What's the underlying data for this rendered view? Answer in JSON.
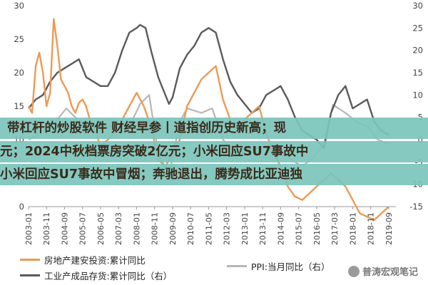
{
  "headline": {
    "line1": "带杠杆的炒股软件 财经早参丨道指创历史新高；现",
    "line2": "元；2024中秋档票房突破2亿元；小米回应SU7事故中",
    "line3": "小米回应SU7事故中冒烟；奔驰退出，腾势成比亚迪独"
  },
  "watermark": "普涛宏观笔记",
  "colors": {
    "real_estate": "#ec9a55",
    "inventory": "#5a5a5a",
    "ppi": "#b7b7b7",
    "banner": "#7bc4bc"
  },
  "chart_data": {
    "type": "line",
    "x_ticks": [
      "2003-01",
      "2003-11",
      "2004-09",
      "2005-07",
      "2006-05",
      "2007-03",
      "2008-01",
      "2008-11",
      "2009-09",
      "2010-07",
      "2011-05",
      "2012-03",
      "2013-01",
      "2013-11",
      "2014-09",
      "2015-07",
      "2016-05",
      "2017-03",
      "2018-01",
      "2018-11",
      "2019-09"
    ],
    "y_left": {
      "ticks": [
        "0",
        "5",
        "10",
        "15",
        "20",
        "25",
        "30"
      ],
      "range": [
        0,
        30
      ]
    },
    "y_right": {
      "ticks": [
        "-15",
        "-10",
        "-5",
        "0",
        "5",
        "10",
        "15",
        "20",
        "25",
        "30"
      ],
      "range": [
        -15,
        30
      ]
    },
    "series": [
      {
        "name": "房地产建安投资:累计同比",
        "axis": "left",
        "color": "#ec9a55",
        "points": [
          [
            "2003-01",
            15
          ],
          [
            "2003-03",
            14
          ],
          [
            "2003-05",
            21
          ],
          [
            "2003-07",
            23
          ],
          [
            "2003-09",
            20
          ],
          [
            "2003-11",
            15
          ],
          [
            "2004-01",
            17
          ],
          [
            "2004-03",
            28
          ],
          [
            "2004-05",
            24
          ],
          [
            "2004-07",
            19
          ],
          [
            "2004-09",
            18
          ],
          [
            "2004-11",
            17
          ],
          [
            "2005-01",
            15
          ],
          [
            "2005-03",
            14
          ],
          [
            "2005-05",
            15.5
          ],
          [
            "2005-07",
            16
          ],
          [
            "2005-09",
            15
          ],
          [
            "2005-11",
            13
          ],
          [
            "2006-01",
            12
          ],
          [
            "2006-05",
            9
          ],
          [
            "2006-09",
            10
          ],
          [
            "2007-01",
            11
          ],
          [
            "2007-05",
            13
          ],
          [
            "2007-09",
            15
          ],
          [
            "2008-01",
            17
          ],
          [
            "2008-05",
            15
          ],
          [
            "2008-09",
            12
          ],
          [
            "2009-01",
            7
          ],
          [
            "2009-05",
            6
          ],
          [
            "2009-09",
            8
          ],
          [
            "2010-01",
            10
          ],
          [
            "2010-05",
            15
          ],
          [
            "2010-09",
            17
          ],
          [
            "2011-01",
            19
          ],
          [
            "2011-05",
            20
          ],
          [
            "2011-09",
            21
          ],
          [
            "2012-01",
            16
          ],
          [
            "2012-05",
            13
          ],
          [
            "2012-09",
            11
          ],
          [
            "2013-01",
            13
          ],
          [
            "2013-05",
            14
          ],
          [
            "2013-09",
            15
          ],
          [
            "2014-01",
            11
          ],
          [
            "2014-05",
            8
          ],
          [
            "2014-09",
            6
          ],
          [
            "2015-01",
            3
          ],
          [
            "2015-05",
            1.5
          ],
          [
            "2015-09",
            1
          ],
          [
            "2016-01",
            2
          ],
          [
            "2016-05",
            3
          ],
          [
            "2016-09",
            4
          ],
          [
            "2017-01",
            5
          ],
          [
            "2017-05",
            4
          ],
          [
            "2017-09",
            3
          ],
          [
            "2018-01",
            1
          ],
          [
            "2018-05",
            -1
          ],
          [
            "2018-09",
            -1.5
          ],
          [
            "2019-01",
            -2
          ],
          [
            "2019-05",
            -1
          ],
          [
            "2019-09",
            0
          ]
        ]
      },
      {
        "name": "工业产成品存货:累计同比（右）",
        "axis": "right",
        "color": "#5a5a5a",
        "points": [
          [
            "2003-01",
            7
          ],
          [
            "2003-05",
            9
          ],
          [
            "2003-09",
            10
          ],
          [
            "2004-01",
            13
          ],
          [
            "2004-05",
            15
          ],
          [
            "2004-09",
            16
          ],
          [
            "2005-01",
            17
          ],
          [
            "2005-05",
            18
          ],
          [
            "2005-09",
            14
          ],
          [
            "2006-01",
            13
          ],
          [
            "2006-05",
            12
          ],
          [
            "2006-09",
            12
          ],
          [
            "2007-01",
            15
          ],
          [
            "2007-05",
            20
          ],
          [
            "2007-09",
            24
          ],
          [
            "2008-01",
            25
          ],
          [
            "2008-03",
            25.7
          ],
          [
            "2008-06",
            25
          ],
          [
            "2008-09",
            20
          ],
          [
            "2009-01",
            14
          ],
          [
            "2009-04",
            11
          ],
          [
            "2009-07",
            8
          ],
          [
            "2009-09",
            9.5
          ],
          [
            "2010-01",
            16
          ],
          [
            "2010-05",
            19
          ],
          [
            "2010-09",
            21
          ],
          [
            "2011-01",
            24
          ],
          [
            "2011-05",
            25
          ],
          [
            "2011-09",
            24
          ],
          [
            "2012-01",
            18
          ],
          [
            "2012-05",
            13
          ],
          [
            "2012-09",
            10
          ],
          [
            "2013-01",
            8
          ],
          [
            "2013-05",
            6
          ],
          [
            "2013-09",
            7
          ],
          [
            "2014-01",
            10
          ],
          [
            "2014-05",
            11
          ],
          [
            "2014-09",
            12
          ],
          [
            "2015-01",
            9
          ],
          [
            "2015-05",
            5
          ],
          [
            "2015-09",
            2
          ],
          [
            "2016-01",
            1
          ],
          [
            "2016-05",
            0
          ],
          [
            "2016-09",
            -2
          ],
          [
            "2017-01",
            6
          ],
          [
            "2017-05",
            10
          ],
          [
            "2017-09",
            12
          ],
          [
            "2018-01",
            7
          ],
          [
            "2018-05",
            8
          ],
          [
            "2018-09",
            9
          ],
          [
            "2019-01",
            4
          ],
          [
            "2019-05",
            2
          ],
          [
            "2019-09",
            1
          ]
        ]
      },
      {
        "name": "PPI:当月同比（右）",
        "axis": "right",
        "color": "#b7b7b7",
        "points": [
          [
            "2003-01",
            0
          ],
          [
            "2003-06",
            1
          ],
          [
            "2004-01",
            3
          ],
          [
            "2004-06",
            5
          ],
          [
            "2004-10",
            7
          ],
          [
            "2005-03",
            5
          ],
          [
            "2005-09",
            3
          ],
          [
            "2006-03",
            2
          ],
          [
            "2006-09",
            3
          ],
          [
            "2007-03",
            3
          ],
          [
            "2007-09",
            3
          ],
          [
            "2008-03",
            8
          ],
          [
            "2008-08",
            10
          ],
          [
            "2009-01",
            -3
          ],
          [
            "2009-07",
            -8
          ],
          [
            "2010-01",
            4
          ],
          [
            "2010-05",
            7
          ],
          [
            "2011-01",
            6
          ],
          [
            "2011-07",
            7
          ],
          [
            "2012-01",
            0
          ],
          [
            "2012-09",
            -3.5
          ],
          [
            "2013-06",
            -2
          ],
          [
            "2014-01",
            -1.5
          ],
          [
            "2014-06",
            -1
          ],
          [
            "2015-01",
            -4
          ],
          [
            "2015-09",
            -6
          ],
          [
            "2016-03",
            -4
          ],
          [
            "2016-09",
            -1
          ],
          [
            "2017-02",
            7.8
          ],
          [
            "2017-09",
            6
          ],
          [
            "2018-03",
            4
          ],
          [
            "2018-09",
            3
          ],
          [
            "2019-03",
            0
          ],
          [
            "2019-09",
            -1
          ]
        ]
      }
    ],
    "legend": [
      {
        "label": "房地产建安投资:累计同比",
        "color": "#ec9a55"
      },
      {
        "label": "PPI:当月同比（右）",
        "color": "#b7b7b7"
      },
      {
        "label": "工业产成品存货:累计同比（右）",
        "color": "#5a5a5a"
      }
    ]
  }
}
